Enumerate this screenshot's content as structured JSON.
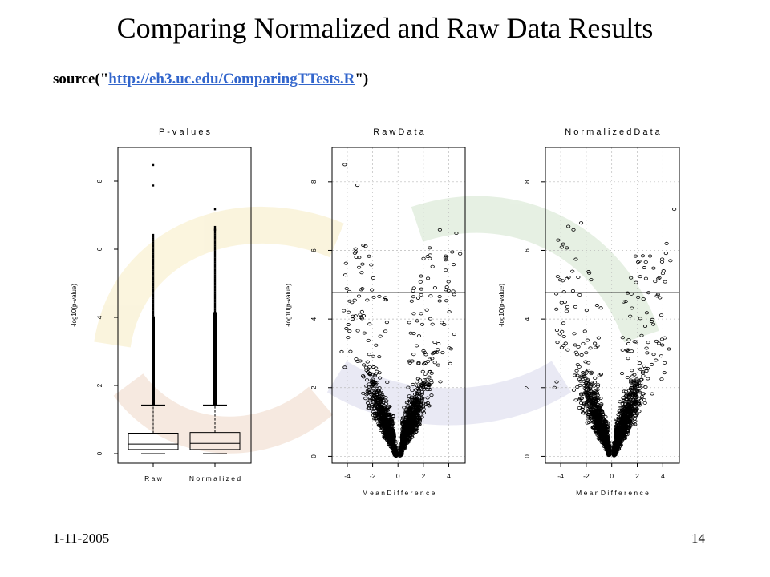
{
  "slide": {
    "title": "Comparing Normalized and Raw Data Results",
    "source_prefix": "source(\"",
    "source_link": "http://eh3.uc.edu/ComparingTTests.R",
    "source_suffix": "\")",
    "date": "1-11-2005",
    "page_number": "14"
  },
  "colors": {
    "link": "#3366cc",
    "marks": "#000000",
    "background_swirl": "#e8c84a"
  },
  "chart_data": [
    {
      "type": "box",
      "title": "P-values",
      "ylabel": "-log10(p-value)",
      "xlabel": "",
      "ylim": [
        0,
        8.8
      ],
      "yticks": [
        0,
        2,
        4,
        6,
        8
      ],
      "categories": [
        "Raw",
        "Normalized"
      ],
      "boxes": [
        {
          "name": "Raw",
          "whisker_low": 0.0,
          "q1": 0.12,
          "median": 0.28,
          "q3": 0.6,
          "whisker_high": 1.42,
          "outliers_max": 8.5,
          "outliers_dense_to": 6.5
        },
        {
          "name": "Normalized",
          "whisker_low": 0.0,
          "q1": 0.12,
          "median": 0.3,
          "q3": 0.62,
          "whisker_high": 1.42,
          "outliers_max": 7.2,
          "outliers_dense_to": 6.7
        }
      ],
      "grid": false
    },
    {
      "type": "scatter",
      "title": "Raw Data",
      "xlabel": "Mean Difference",
      "ylabel": "-log10(p-value)",
      "xlim": [
        -5.2,
        5.3
      ],
      "ylim": [
        -0.2,
        9.0
      ],
      "xticks": [
        -4,
        -2,
        0,
        2,
        4
      ],
      "yticks": [
        0,
        2,
        4,
        6,
        8
      ],
      "hline": 4.77,
      "grid": true,
      "shape": "volcano"
    },
    {
      "type": "scatter",
      "title": "Normalized Data",
      "xlabel": "Mean Difference",
      "ylabel": "-log10(p-value)",
      "xlim": [
        -5.2,
        5.3
      ],
      "ylim": [
        -0.2,
        9.0
      ],
      "xticks": [
        -4,
        -2,
        0,
        2,
        4
      ],
      "yticks": [
        0,
        2,
        4,
        6,
        8
      ],
      "hline": 4.77,
      "grid": true,
      "shape": "volcano"
    }
  ]
}
